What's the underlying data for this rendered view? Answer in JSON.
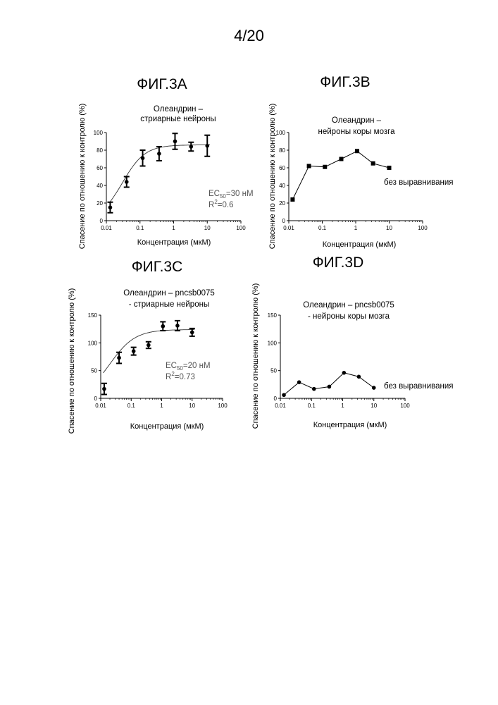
{
  "page": {
    "number": "4/20"
  },
  "chart_data": [
    {
      "type": "scatter",
      "id": "A",
      "title": "ФИГ.3A",
      "subtitle": [
        "Олеандрин –",
        "стриарные нейроны"
      ],
      "xlabel": "Концентрация (мкМ)",
      "ylabel": "Спасение по отношению к контролю (%)",
      "x_scale": "log",
      "xlim": [
        0.01,
        100
      ],
      "ylim": [
        0,
        100
      ],
      "x_ticks": [
        0.01,
        0.1,
        1,
        10,
        100
      ],
      "x_tick_labels": [
        "0.01",
        "0.1",
        "1",
        "10",
        "100"
      ],
      "y_ticks": [
        0,
        20,
        40,
        60,
        80,
        100
      ],
      "grid": false,
      "series": [
        {
          "x": [
            0.013,
            0.04,
            0.12,
            0.37,
            1.1,
            3.3,
            10
          ],
          "y": [
            15,
            44,
            71,
            76,
            90,
            84,
            85
          ],
          "yerr": [
            6,
            6,
            9,
            8,
            9,
            5,
            12
          ],
          "marker": "circle",
          "connect": false,
          "error_bars": true
        }
      ],
      "fit": {
        "type": "sigmoid",
        "bottom": 0,
        "top": 86,
        "ec50": 0.03,
        "hill": 1.3
      },
      "annotations": [
        "EC50=30 нМ",
        "R2=0.6"
      ]
    },
    {
      "type": "line",
      "id": "B",
      "title": "ФИГ.3B",
      "subtitle": [
        "Олеандрин –",
        "нейроны коры мозга"
      ],
      "xlabel": "Концентрация (мкМ)",
      "ylabel": "Спасение по отношению к контролю (%)",
      "x_scale": "log",
      "xlim": [
        0.01,
        100
      ],
      "ylim": [
        0,
        100
      ],
      "x_ticks": [
        0.01,
        0.1,
        1,
        10,
        100
      ],
      "x_tick_labels": [
        "0.01",
        "0.1",
        "1",
        "10",
        "100"
      ],
      "y_ticks": [
        0,
        20,
        40,
        60,
        80,
        100
      ],
      "grid": false,
      "series": [
        {
          "x": [
            0.013,
            0.04,
            0.12,
            0.37,
            1.1,
            3.3,
            10
          ],
          "y": [
            24,
            62,
            61,
            70,
            79,
            65,
            60
          ],
          "marker": "square",
          "connect": true
        }
      ],
      "annotations": [
        "без выравнивания"
      ]
    },
    {
      "type": "scatter",
      "id": "C",
      "title": "ФИГ.3C",
      "subtitle": [
        "Олеандрин – pncsb0075",
        "- стриарные нейроны"
      ],
      "xlabel": "Концентрация (мкМ)",
      "ylabel": "Спасение по отношению к контролю (%)",
      "x_scale": "log",
      "xlim": [
        0.01,
        100
      ],
      "ylim": [
        0,
        150
      ],
      "x_ticks": [
        0.01,
        0.1,
        1,
        10,
        100
      ],
      "x_tick_labels": [
        "0.01",
        "0.1",
        "1",
        "10",
        "100"
      ],
      "y_ticks": [
        0,
        50,
        100,
        150
      ],
      "grid": false,
      "series": [
        {
          "x": [
            0.013,
            0.04,
            0.12,
            0.37,
            1.1,
            3.3,
            10
          ],
          "y": [
            17,
            73,
            85,
            96,
            130,
            131,
            119
          ],
          "yerr": [
            10,
            10,
            7,
            6,
            8,
            9,
            7
          ],
          "marker": "circle",
          "connect": false,
          "error_bars": true
        }
      ],
      "fit": {
        "type": "sigmoid",
        "bottom": 0,
        "top": 124,
        "ec50": 0.02,
        "hill": 1.05
      },
      "annotations": [
        "EC50=20 нМ",
        "R2=0.73"
      ]
    },
    {
      "type": "line",
      "id": "D",
      "title": "ФИГ.3D",
      "subtitle": [
        "Олеандрин – pncsb0075",
        "- нейроны коры мозга"
      ],
      "xlabel": "Концентрация (мкМ)",
      "ylabel": "Спасение по отношению к контролю (%)",
      "x_scale": "log",
      "xlim": [
        0.01,
        100
      ],
      "ylim": [
        0,
        150
      ],
      "x_ticks": [
        0.01,
        0.1,
        1,
        10,
        100
      ],
      "x_tick_labels": [
        "0.01",
        "0.1",
        "1",
        "10",
        "100"
      ],
      "y_ticks": [
        0,
        50,
        100,
        150
      ],
      "grid": false,
      "series": [
        {
          "x": [
            0.013,
            0.04,
            0.12,
            0.37,
            1.1,
            3.3,
            10
          ],
          "y": [
            6,
            29,
            17,
            21,
            46,
            39,
            19
          ],
          "marker": "circle",
          "connect": true
        }
      ],
      "annotations": [
        "без выравнивания"
      ]
    }
  ]
}
